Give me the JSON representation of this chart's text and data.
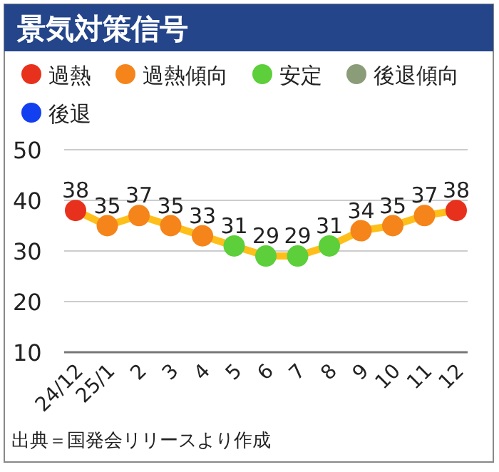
{
  "chart_data": {
    "type": "line",
    "title": "景気対策信号",
    "categories": [
      "24/12",
      "25/1",
      "2",
      "3",
      "4",
      "5",
      "6",
      "7",
      "8",
      "9",
      "10",
      "11",
      "12"
    ],
    "series": [
      {
        "color": "#ffbf1a",
        "marker": "none",
        "values": [
          38,
          35,
          37,
          35,
          33,
          31,
          29,
          29,
          31,
          34,
          35,
          37,
          38
        ]
      },
      {
        "type": "scatter",
        "name": "過熱",
        "color": "#e8311c",
        "values": [
          38,
          null,
          null,
          null,
          null,
          null,
          null,
          null,
          null,
          null,
          null,
          null,
          38
        ],
        "value_labels": [
          "38",
          null,
          null,
          null,
          null,
          null,
          null,
          null,
          null,
          null,
          null,
          null,
          "38"
        ]
      },
      {
        "type": "scatter",
        "name": "過熱傾向",
        "color": "#f5841a",
        "values": [
          null,
          35,
          37,
          35,
          33,
          null,
          null,
          null,
          null,
          34,
          35,
          37,
          null
        ],
        "value_labels": [
          null,
          "35",
          "37",
          "35",
          "33",
          null,
          null,
          null,
          null,
          "34",
          "35",
          "37",
          null
        ]
      },
      {
        "type": "scatter",
        "name": "安定",
        "color": "#5ccf3a",
        "values": [
          null,
          null,
          null,
          null,
          null,
          31,
          29,
          29,
          31,
          null,
          null,
          null,
          null
        ],
        "value_labels": [
          null,
          null,
          null,
          null,
          null,
          "31",
          "29",
          "29",
          "31",
          null,
          null,
          null,
          null
        ]
      },
      {
        "type": "scatter",
        "name": "後退傾向",
        "color": "#8a9c78",
        "values": [
          null,
          null,
          null,
          null,
          null,
          null,
          null,
          null,
          null,
          null,
          null,
          null,
          null
        ]
      },
      {
        "type": "scatter",
        "name": "後退",
        "color": "#1240f0",
        "values": [
          null,
          null,
          null,
          null,
          null,
          null,
          null,
          null,
          null,
          null,
          null,
          null,
          null
        ]
      }
    ],
    "ylim": [
      10,
      50
    ],
    "yticks": [
      10,
      20,
      30,
      40,
      50
    ],
    "grid": "y",
    "legend": "top",
    "marker": "circle",
    "annotations": [
      "出典＝国発会リリースより作成"
    ]
  }
}
